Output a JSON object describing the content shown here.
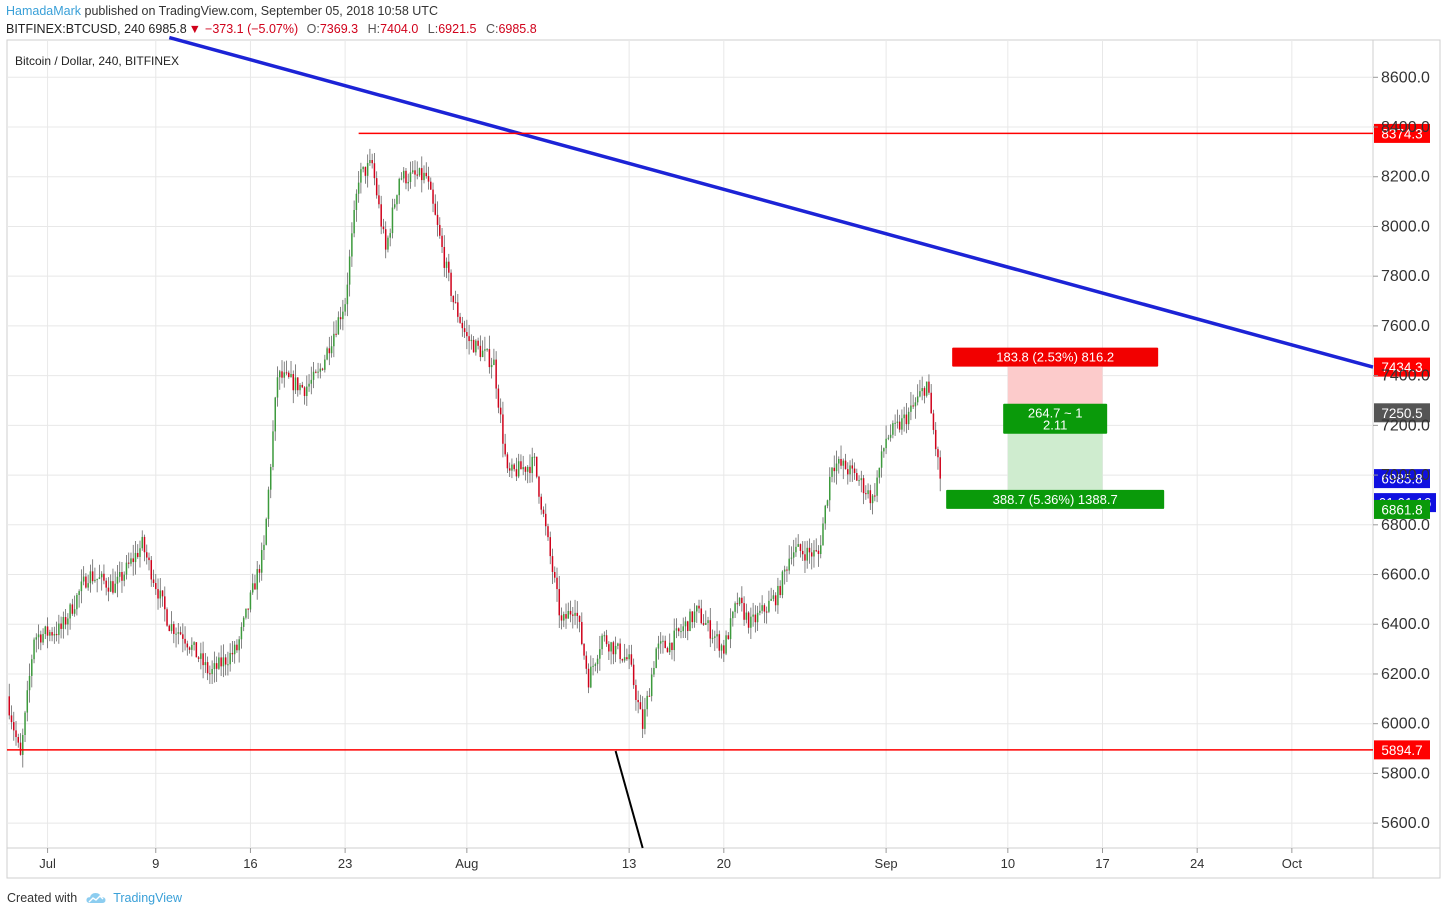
{
  "header": {
    "author": "HamadaMark",
    "published_text": " published on TradingView.com, September 05, 2018 10:58 UTC"
  },
  "quote": {
    "symbol": "BITFINEX:BTCUSD, 240",
    "last": "6985.8",
    "change": "−373.1 (−5.07%)",
    "o_label": "O:",
    "o": "7369.3",
    "h_label": "H:",
    "h": "7404.0",
    "l_label": "L:",
    "l": "6921.5",
    "c_label": "C:",
    "c": "6985.8"
  },
  "footer": {
    "created_with": "Created with",
    "brand": "TradingView"
  },
  "colors": {
    "up": "#26a69a",
    "up_body": "#3c9a3c",
    "down": "#d0021b",
    "trendline": "#1c23d6",
    "level": "#ff0000",
    "grid": "#e8e8e8",
    "stop_zone": "#fccbcb",
    "target_zone": "#cfeccf",
    "stop_label": "#f20000",
    "target_label": "#0a9a0a",
    "last_price": "#1010e0",
    "entry_label": "#555555"
  },
  "chart_data": {
    "type": "candlestick",
    "title": "Bitcoin / Dollar, 240, BITFINEX",
    "y_axis": {
      "ticks": [
        5600,
        5800,
        6000,
        6200,
        6400,
        6600,
        6800,
        7000,
        7200,
        7400,
        7600,
        7800,
        8000,
        8200,
        8400,
        8600
      ],
      "tick_labels": [
        "5600.0",
        "5800.0",
        "6000.0",
        "6200.0",
        "6400.0",
        "6600.0",
        "6800.0",
        "7000.0",
        "7200.0",
        "7400.0",
        "7600.0",
        "7800.0",
        "8000.0",
        "8200.0",
        "8400.0",
        "8600.0"
      ],
      "range": [
        5500,
        8750
      ]
    },
    "x_axis": {
      "range": [
        "2018-06-28",
        "2018-10-07"
      ],
      "ticks": [
        {
          "date": "2018-07-01",
          "label": "Jul"
        },
        {
          "date": "2018-07-09",
          "label": "9"
        },
        {
          "date": "2018-07-16",
          "label": "16"
        },
        {
          "date": "2018-07-23",
          "label": "23"
        },
        {
          "date": "2018-08-01",
          "label": "Aug"
        },
        {
          "date": "2018-08-13",
          "label": "13"
        },
        {
          "date": "2018-08-20",
          "label": "20"
        },
        {
          "date": "2018-09-01",
          "label": "Sep"
        },
        {
          "date": "2018-09-10",
          "label": "10"
        },
        {
          "date": "2018-09-17",
          "label": "17"
        },
        {
          "date": "2018-09-24",
          "label": "24"
        },
        {
          "date": "2018-10-01",
          "label": "Oct"
        }
      ]
    },
    "price_path": [
      [
        "2018-06-28",
        6110
      ],
      [
        "2018-06-29",
        5860
      ],
      [
        "2018-06-30",
        6350
      ],
      [
        "2018-07-02",
        6380
      ],
      [
        "2018-07-04",
        6600
      ],
      [
        "2018-07-06",
        6550
      ],
      [
        "2018-07-08",
        6720
      ],
      [
        "2018-07-10",
        6400
      ],
      [
        "2018-07-11",
        6360
      ],
      [
        "2018-07-13",
        6200
      ],
      [
        "2018-07-15",
        6300
      ],
      [
        "2018-07-17",
        6700
      ],
      [
        "2018-07-18",
        7400
      ],
      [
        "2018-07-20",
        7350
      ],
      [
        "2018-07-21",
        7400
      ],
      [
        "2018-07-23",
        7700
      ],
      [
        "2018-07-24",
        8200
      ],
      [
        "2018-07-25",
        8250
      ],
      [
        "2018-07-26",
        7900
      ],
      [
        "2018-07-27",
        8200
      ],
      [
        "2018-07-29",
        8200
      ],
      [
        "2018-07-31",
        7700
      ],
      [
        "2018-08-01",
        7550
      ],
      [
        "2018-08-03",
        7450
      ],
      [
        "2018-08-04",
        7000
      ],
      [
        "2018-08-06",
        7050
      ],
      [
        "2018-08-08",
        6400
      ],
      [
        "2018-08-09",
        6480
      ],
      [
        "2018-08-10",
        6180
      ],
      [
        "2018-08-11",
        6350
      ],
      [
        "2018-08-12",
        6300
      ],
      [
        "2018-08-13",
        6250
      ],
      [
        "2018-08-14",
        5990
      ],
      [
        "2018-08-15",
        6300
      ],
      [
        "2018-08-16",
        6320
      ],
      [
        "2018-08-18",
        6450
      ],
      [
        "2018-08-20",
        6300
      ],
      [
        "2018-08-21",
        6490
      ],
      [
        "2018-08-22",
        6400
      ],
      [
        "2018-08-23",
        6460
      ],
      [
        "2018-08-24",
        6520
      ],
      [
        "2018-08-25",
        6700
      ],
      [
        "2018-08-27",
        6680
      ],
      [
        "2018-08-28",
        7050
      ],
      [
        "2018-08-29",
        7030
      ],
      [
        "2018-08-30",
        6980
      ],
      [
        "2018-08-31",
        6900
      ],
      [
        "2018-09-01",
        7150
      ],
      [
        "2018-09-02",
        7200
      ],
      [
        "2018-09-03",
        7270
      ],
      [
        "2018-09-04",
        7369.3
      ],
      [
        "2018-09-05",
        6985.8
      ]
    ],
    "lines": [
      {
        "name": "trendline",
        "points": [
          [
            "2018-07-10",
            8760
          ],
          [
            "2018-10-07",
            7434.3
          ]
        ]
      },
      {
        "name": "resistance",
        "points": [
          [
            "2018-07-24",
            8374.3
          ],
          [
            "2018-10-07",
            8374.3
          ]
        ]
      },
      {
        "name": "support",
        "points": [
          [
            "2018-06-28",
            5894.7
          ],
          [
            "2018-10-07",
            5894.7
          ]
        ]
      },
      {
        "name": "down-line",
        "points": [
          [
            "2018-08-12",
            5890
          ],
          [
            "2018-08-14",
            5500
          ]
        ]
      }
    ],
    "position": {
      "x_range": [
        "2018-09-10",
        "2018-09-17"
      ],
      "entry": 7250.5,
      "stop": 7434.3,
      "target": 6861.8,
      "stop_label": "183.8 (2.53%) 816.2",
      "target_label": "388.7 (5.36%) 1388.7",
      "ratio_label_1": "264.7 ~ 1",
      "ratio_label_2": "2.11"
    },
    "price_labels": {
      "resistance": "8374.3",
      "trendline": "7434.3",
      "entry": "7250.5",
      "last": "6985.8",
      "countdown": "01:01:16",
      "target": "6861.8",
      "support": "5894.7"
    }
  }
}
